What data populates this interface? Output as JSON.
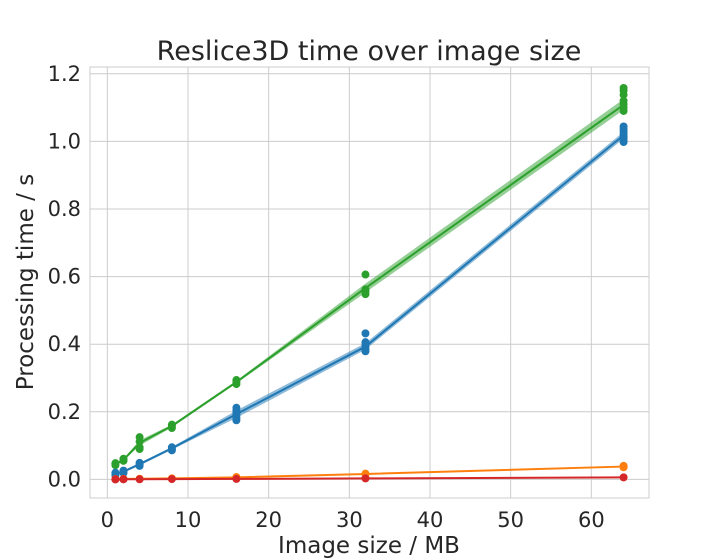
{
  "chart_data": {
    "type": "line",
    "title": "Reslice3D time over image size",
    "xlabel": "Image size / MB",
    "ylabel": "Processing time / s",
    "xlim": [
      -2.15,
      67.15
    ],
    "ylim": [
      -0.055,
      1.22
    ],
    "xticks": [
      "0",
      "10",
      "20",
      "30",
      "40",
      "50",
      "60"
    ],
    "yticks": [
      "0.0",
      "0.2",
      "0.4",
      "0.6",
      "0.8",
      "1.0",
      "1.2"
    ],
    "grid": true,
    "legend": "none",
    "x": [
      1,
      2,
      4,
      8,
      16,
      32,
      64
    ],
    "series": [
      {
        "color": "#2ca02c",
        "mean": [
          0.045,
          0.058,
          0.108,
          0.158,
          0.288,
          0.566,
          1.108
        ],
        "ci_low": [
          0.043,
          0.055,
          0.1,
          0.154,
          0.284,
          0.553,
          1.093
        ],
        "ci_high": [
          0.047,
          0.061,
          0.116,
          0.162,
          0.292,
          0.579,
          1.125
        ],
        "points": [
          [
            1,
            0.042
          ],
          [
            1,
            0.046
          ],
          [
            1,
            0.048
          ],
          [
            2,
            0.055
          ],
          [
            2,
            0.058
          ],
          [
            2,
            0.061
          ],
          [
            4,
            0.09
          ],
          [
            4,
            0.095
          ],
          [
            4,
            0.112
          ],
          [
            4,
            0.125
          ],
          [
            8,
            0.152
          ],
          [
            8,
            0.158
          ],
          [
            8,
            0.162
          ],
          [
            16,
            0.282
          ],
          [
            16,
            0.288
          ],
          [
            16,
            0.294
          ],
          [
            32,
            0.548
          ],
          [
            32,
            0.555
          ],
          [
            32,
            0.562
          ],
          [
            32,
            0.606
          ],
          [
            64,
            1.09
          ],
          [
            64,
            1.1
          ],
          [
            64,
            1.11
          ],
          [
            64,
            1.12
          ],
          [
            64,
            1.138
          ],
          [
            64,
            1.15
          ],
          [
            64,
            1.158
          ]
        ]
      },
      {
        "color": "#1f77b4",
        "mean": [
          0.017,
          0.023,
          0.045,
          0.092,
          0.193,
          0.393,
          1.018
        ],
        "ci_low": [
          0.014,
          0.02,
          0.041,
          0.088,
          0.182,
          0.384,
          1.008
        ],
        "ci_high": [
          0.02,
          0.026,
          0.049,
          0.096,
          0.204,
          0.403,
          1.028
        ],
        "points": [
          [
            1,
            0.012
          ],
          [
            1,
            0.016
          ],
          [
            1,
            0.02
          ],
          [
            2,
            0.019
          ],
          [
            2,
            0.023
          ],
          [
            2,
            0.026
          ],
          [
            4,
            0.04
          ],
          [
            4,
            0.045
          ],
          [
            4,
            0.049
          ],
          [
            8,
            0.086
          ],
          [
            8,
            0.091
          ],
          [
            8,
            0.095
          ],
          [
            16,
            0.175
          ],
          [
            16,
            0.182
          ],
          [
            16,
            0.19
          ],
          [
            16,
            0.196
          ],
          [
            16,
            0.203
          ],
          [
            16,
            0.212
          ],
          [
            32,
            0.379
          ],
          [
            32,
            0.385
          ],
          [
            32,
            0.392
          ],
          [
            32,
            0.4
          ],
          [
            32,
            0.406
          ],
          [
            32,
            0.432
          ],
          [
            64,
            0.998
          ],
          [
            64,
            1.005
          ],
          [
            64,
            1.012
          ],
          [
            64,
            1.02
          ],
          [
            64,
            1.028
          ],
          [
            64,
            1.036
          ],
          [
            64,
            1.044
          ]
        ]
      },
      {
        "color": "#ff7f0e",
        "mean": [
          0.001,
          0.0015,
          0.002,
          0.003,
          0.006,
          0.016,
          0.038
        ],
        "ci_low": [
          0.0005,
          0.001,
          0.0015,
          0.0025,
          0.005,
          0.015,
          0.036
        ],
        "ci_high": [
          0.0015,
          0.002,
          0.0025,
          0.0035,
          0.007,
          0.017,
          0.04
        ],
        "points": [
          [
            1,
            0.001
          ],
          [
            2,
            0.0015
          ],
          [
            4,
            0.002
          ],
          [
            8,
            0.003
          ],
          [
            16,
            0.005
          ],
          [
            16,
            0.007
          ],
          [
            32,
            0.015
          ],
          [
            32,
            0.017
          ],
          [
            64,
            0.036
          ],
          [
            64,
            0.038
          ],
          [
            64,
            0.04
          ]
        ]
      },
      {
        "color": "#d62728",
        "mean": [
          0.0002,
          0.0003,
          0.0005,
          0.001,
          0.0015,
          0.003,
          0.006
        ],
        "ci_low": [
          0.0,
          0.0001,
          0.0003,
          0.0008,
          0.0012,
          0.0025,
          0.0055
        ],
        "ci_high": [
          0.0004,
          0.0005,
          0.0007,
          0.0012,
          0.0018,
          0.0035,
          0.0065
        ],
        "points": [
          [
            1,
            0.0
          ],
          [
            1,
            0.0005
          ],
          [
            2,
            0.0003
          ],
          [
            2,
            0.0006
          ],
          [
            4,
            0.0005
          ],
          [
            8,
            0.001
          ],
          [
            16,
            0.0015
          ],
          [
            32,
            0.003
          ],
          [
            64,
            0.006
          ]
        ]
      }
    ]
  }
}
